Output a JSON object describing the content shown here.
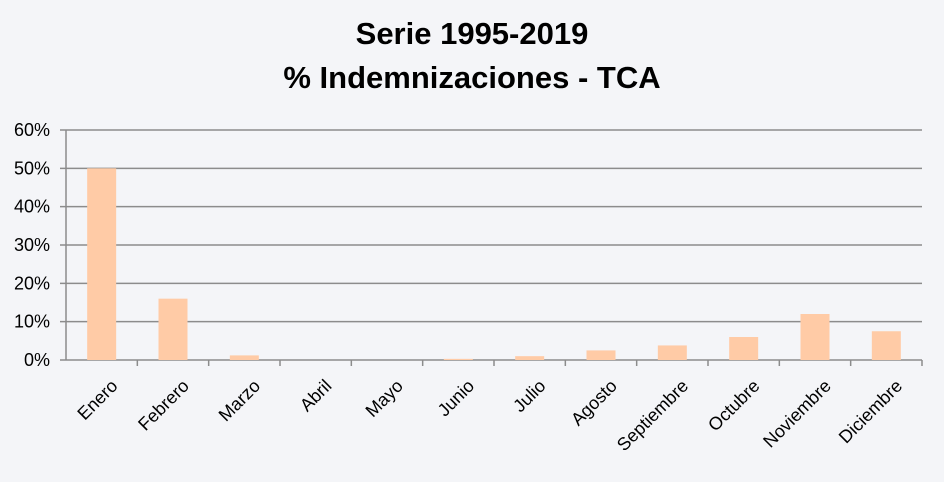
{
  "chart_data": {
    "type": "bar",
    "title_lines": [
      "Serie 1995-2019",
      "% Indemnizaciones - TCA"
    ],
    "categories": [
      "Enero",
      "Febrero",
      "Marzo",
      "Abril",
      "Mayo",
      "Junio",
      "Julio",
      "Agosto",
      "Septiembre",
      "Octubre",
      "Noviembre",
      "Diciembre"
    ],
    "values": [
      50,
      16,
      1.2,
      0,
      0,
      0.3,
      1,
      2.5,
      3.8,
      6,
      12,
      7.5
    ],
    "ylim": [
      0,
      60
    ],
    "yticks": [
      0,
      10,
      20,
      30,
      40,
      50,
      60
    ],
    "ytick_labels": [
      "0%",
      "10%",
      "20%",
      "30%",
      "40%",
      "50%",
      "60%"
    ],
    "xlabel": "",
    "ylabel": "",
    "grid": true,
    "bar_color": "#ffcba6",
    "grid_color": "#8c8c8c"
  }
}
